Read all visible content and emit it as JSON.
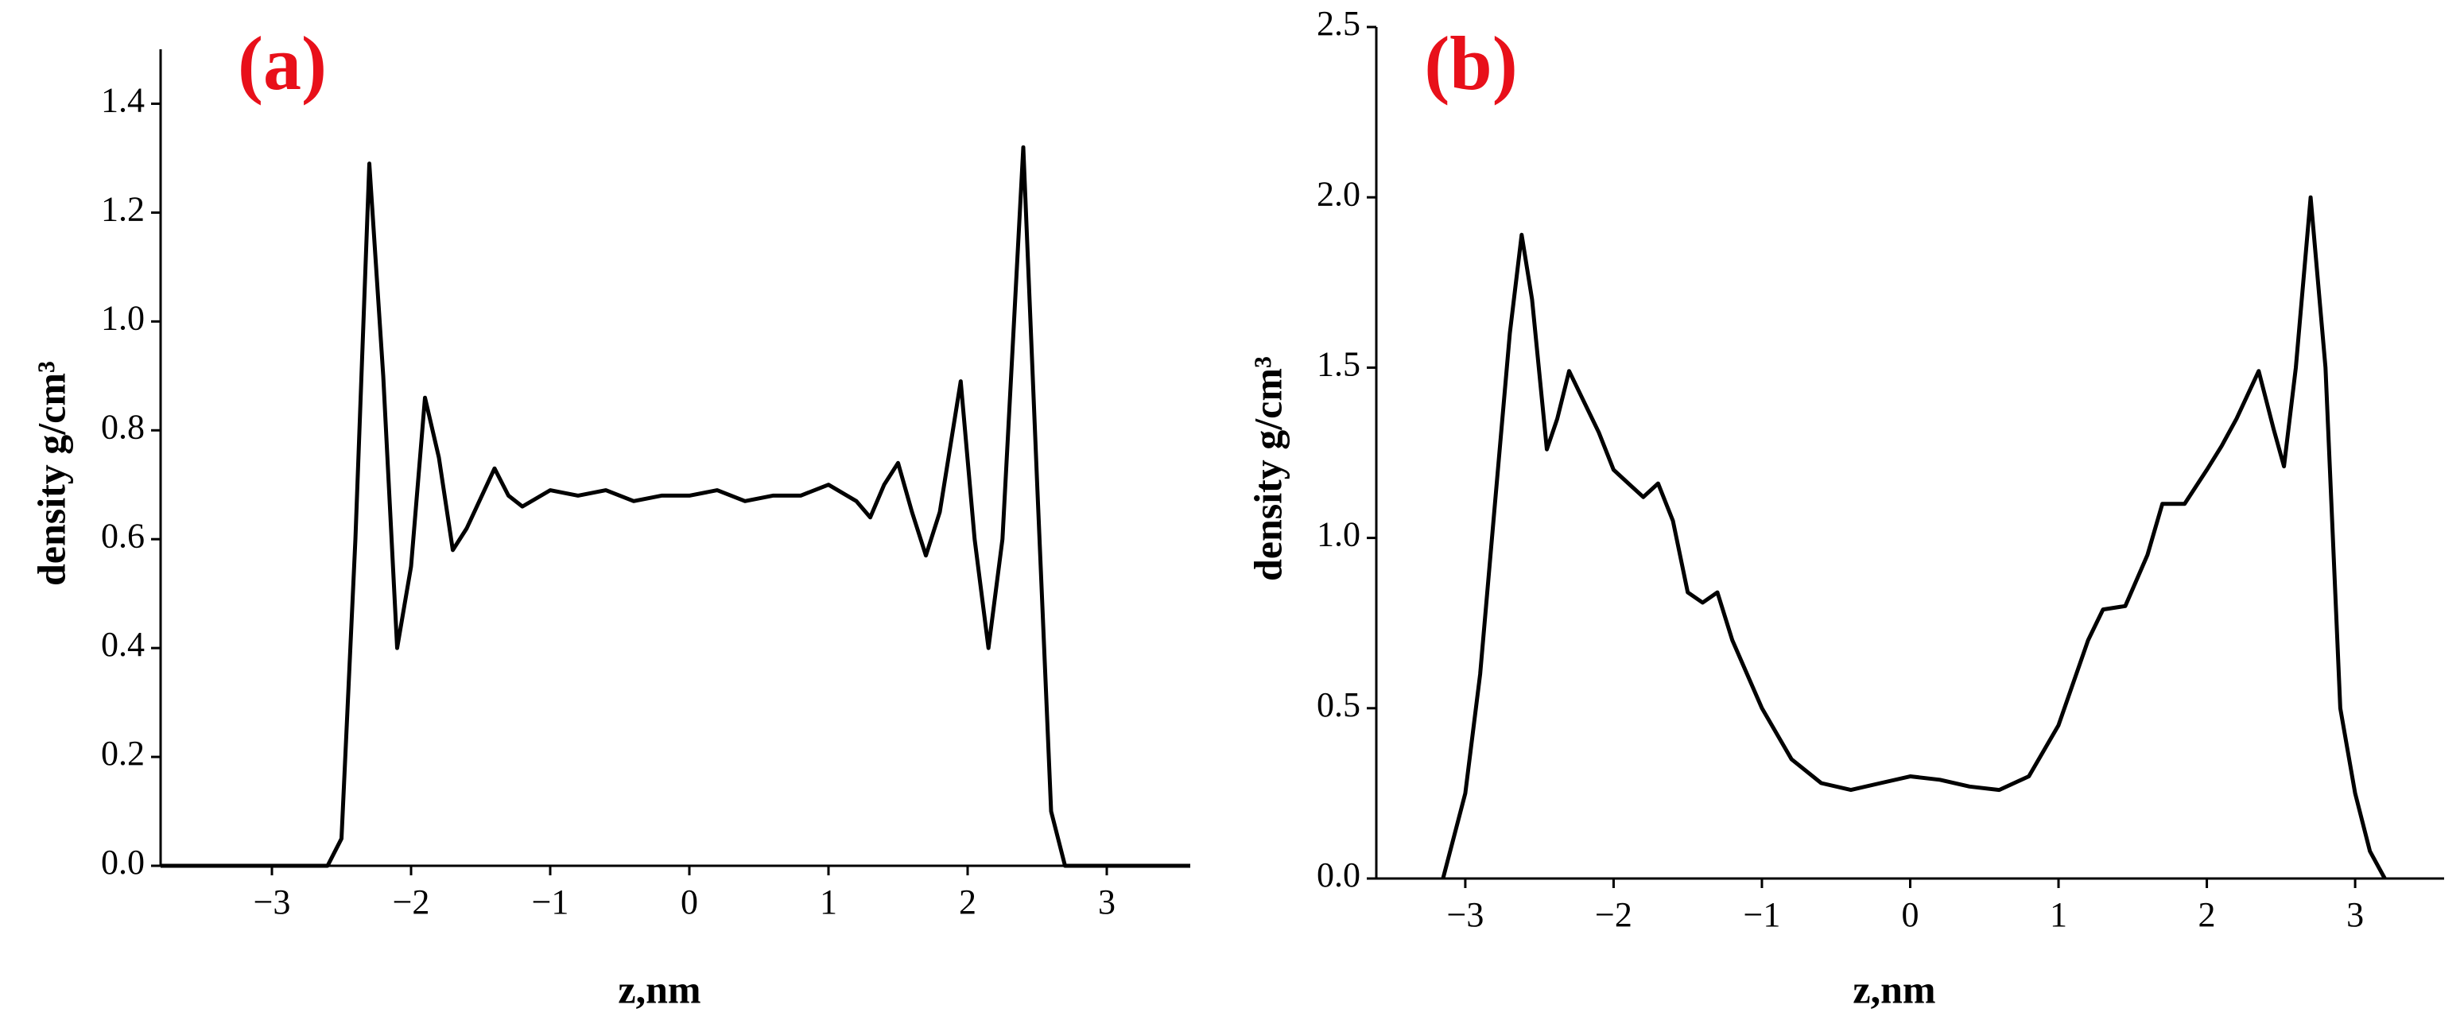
{
  "chart_data": [
    {
      "type": "line",
      "title": "(a)",
      "xlabel": "z,nm",
      "ylabel": "density g/cm³",
      "color": "#000000",
      "x": [
        -3.8,
        -2.6,
        -2.5,
        -2.4,
        -2.3,
        -2.2,
        -2.1,
        -2.0,
        -1.9,
        -1.8,
        -1.7,
        -1.6,
        -1.4,
        -1.3,
        -1.2,
        -1.0,
        -0.8,
        -0.6,
        -0.4,
        -0.2,
        0,
        0.2,
        0.4,
        0.6,
        0.8,
        1.0,
        1.2,
        1.3,
        1.4,
        1.5,
        1.6,
        1.7,
        1.8,
        1.95,
        2.05,
        2.15,
        2.25,
        2.4,
        2.5,
        2.6,
        2.7,
        3.6
      ],
      "values": [
        0,
        0,
        0.05,
        0.6,
        1.29,
        0.9,
        0.4,
        0.55,
        0.86,
        0.75,
        0.58,
        0.62,
        0.73,
        0.68,
        0.66,
        0.69,
        0.68,
        0.69,
        0.67,
        0.68,
        0.68,
        0.69,
        0.67,
        0.68,
        0.68,
        0.7,
        0.67,
        0.64,
        0.7,
        0.74,
        0.65,
        0.57,
        0.65,
        0.89,
        0.6,
        0.4,
        0.6,
        1.32,
        0.7,
        0.1,
        0,
        0
      ],
      "xlim": [
        -3.8,
        3.6
      ],
      "ylim": [
        0,
        1.5
      ],
      "xticks": [
        {
          "value": -3,
          "label": "−3"
        },
        {
          "value": -2,
          "label": "−2"
        },
        {
          "value": -1,
          "label": "−1"
        },
        0,
        1,
        2,
        3
      ],
      "yticks": [
        {
          "value": 0,
          "label": "0.0"
        },
        {
          "value": 0.2,
          "label": "0.2"
        },
        {
          "value": 0.4,
          "label": "0.4"
        },
        {
          "value": 0.6,
          "label": "0.6"
        },
        {
          "value": 0.8,
          "label": "0.8"
        },
        {
          "value": 1.0,
          "label": "1.0"
        },
        {
          "value": 1.2,
          "label": "1.2"
        },
        {
          "value": 1.4,
          "label": "1.4"
        }
      ]
    },
    {
      "type": "line",
      "title": "(b)",
      "xlabel": "z,nm",
      "ylabel": "density g/cm³",
      "color": "#000000",
      "x": [
        -3.15,
        -3.0,
        -2.9,
        -2.8,
        -2.7,
        -2.62,
        -2.55,
        -2.45,
        -2.38,
        -2.3,
        -2.2,
        -2.1,
        -2.0,
        -1.9,
        -1.8,
        -1.7,
        -1.6,
        -1.5,
        -1.4,
        -1.3,
        -1.2,
        -1.0,
        -0.8,
        -0.6,
        -0.4,
        -0.2,
        0,
        0.2,
        0.4,
        0.6,
        0.8,
        1.0,
        1.2,
        1.3,
        1.45,
        1.6,
        1.7,
        1.85,
        2.0,
        2.1,
        2.2,
        2.35,
        2.45,
        2.52,
        2.6,
        2.7,
        2.8,
        2.9,
        3.0,
        3.1,
        3.2
      ],
      "values": [
        0,
        0.25,
        0.6,
        1.1,
        1.6,
        1.89,
        1.7,
        1.26,
        1.35,
        1.49,
        1.4,
        1.31,
        1.2,
        1.16,
        1.12,
        1.16,
        1.05,
        0.84,
        0.81,
        0.84,
        0.7,
        0.5,
        0.35,
        0.28,
        0.26,
        0.28,
        0.3,
        0.29,
        0.27,
        0.26,
        0.3,
        0.45,
        0.7,
        0.79,
        0.8,
        0.95,
        1.1,
        1.1,
        1.2,
        1.27,
        1.35,
        1.49,
        1.32,
        1.21,
        1.5,
        2.0,
        1.5,
        0.5,
        0.25,
        0.08,
        0
      ],
      "xlim": [
        -3.6,
        3.6
      ],
      "ylim": [
        0,
        2.5
      ],
      "xticks": [
        {
          "value": -3,
          "label": "−3"
        },
        {
          "value": -2,
          "label": "−2"
        },
        {
          "value": -1,
          "label": "−1"
        },
        0,
        1,
        2,
        3
      ],
      "yticks": [
        {
          "value": 0,
          "label": "0.0"
        },
        {
          "value": 0.5,
          "label": "0.5"
        },
        {
          "value": 1.0,
          "label": "1.0"
        },
        {
          "value": 1.5,
          "label": "1.5"
        },
        {
          "value": 2.0,
          "label": "2.0"
        },
        {
          "value": 2.5,
          "label": "2.5"
        }
      ]
    }
  ]
}
